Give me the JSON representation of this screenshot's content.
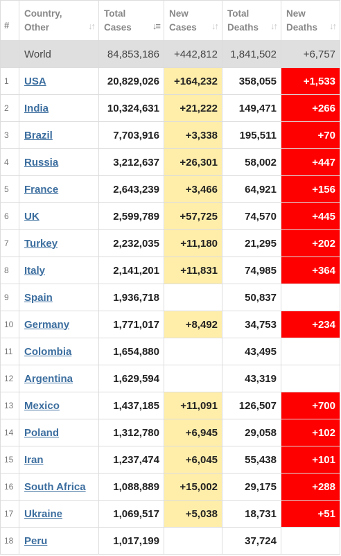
{
  "header": {
    "rank": "#",
    "country": [
      "Country,",
      "Other"
    ],
    "total_cases": [
      "Total",
      "Cases"
    ],
    "new_cases": [
      "New",
      "Cases"
    ],
    "total_deaths": [
      "Total",
      "Deaths"
    ],
    "new_deaths": [
      "New",
      "Deaths"
    ],
    "sort_icon": "sort-arrows-icon"
  },
  "world": {
    "country": "World",
    "total_cases": "84,853,186",
    "new_cases": "+442,812",
    "total_deaths": "1,841,502",
    "new_deaths": "+6,757"
  },
  "rows": [
    {
      "rank": "1",
      "country": "USA",
      "total_cases": "20,829,026",
      "new_cases": "+164,232",
      "total_deaths": "358,055",
      "new_deaths": "+1,533"
    },
    {
      "rank": "2",
      "country": "India",
      "total_cases": "10,324,631",
      "new_cases": "+21,222",
      "total_deaths": "149,471",
      "new_deaths": "+266"
    },
    {
      "rank": "3",
      "country": "Brazil",
      "total_cases": "7,703,916",
      "new_cases": "+3,338",
      "total_deaths": "195,511",
      "new_deaths": "+70"
    },
    {
      "rank": "4",
      "country": "Russia",
      "total_cases": "3,212,637",
      "new_cases": "+26,301",
      "total_deaths": "58,002",
      "new_deaths": "+447"
    },
    {
      "rank": "5",
      "country": "France",
      "total_cases": "2,643,239",
      "new_cases": "+3,466",
      "total_deaths": "64,921",
      "new_deaths": "+156"
    },
    {
      "rank": "6",
      "country": "UK",
      "total_cases": "2,599,789",
      "new_cases": "+57,725",
      "total_deaths": "74,570",
      "new_deaths": "+445"
    },
    {
      "rank": "7",
      "country": "Turkey",
      "total_cases": "2,232,035",
      "new_cases": "+11,180",
      "total_deaths": "21,295",
      "new_deaths": "+202"
    },
    {
      "rank": "8",
      "country": "Italy",
      "total_cases": "2,141,201",
      "new_cases": "+11,831",
      "total_deaths": "74,985",
      "new_deaths": "+364"
    },
    {
      "rank": "9",
      "country": "Spain",
      "total_cases": "1,936,718",
      "new_cases": "",
      "total_deaths": "50,837",
      "new_deaths": ""
    },
    {
      "rank": "10",
      "country": "Germany",
      "total_cases": "1,771,017",
      "new_cases": "+8,492",
      "total_deaths": "34,753",
      "new_deaths": "+234"
    },
    {
      "rank": "11",
      "country": "Colombia",
      "total_cases": "1,654,880",
      "new_cases": "",
      "total_deaths": "43,495",
      "new_deaths": ""
    },
    {
      "rank": "12",
      "country": "Argentina",
      "total_cases": "1,629,594",
      "new_cases": "",
      "total_deaths": "43,319",
      "new_deaths": ""
    },
    {
      "rank": "13",
      "country": "Mexico",
      "total_cases": "1,437,185",
      "new_cases": "+11,091",
      "total_deaths": "126,507",
      "new_deaths": "+700"
    },
    {
      "rank": "14",
      "country": "Poland",
      "total_cases": "1,312,780",
      "new_cases": "+6,945",
      "total_deaths": "29,058",
      "new_deaths": "+102"
    },
    {
      "rank": "15",
      "country": "Iran",
      "total_cases": "1,237,474",
      "new_cases": "+6,045",
      "total_deaths": "55,438",
      "new_deaths": "+101"
    },
    {
      "rank": "16",
      "country": "South Africa",
      "total_cases": "1,088,889",
      "new_cases": "+15,002",
      "total_deaths": "29,175",
      "new_deaths": "+288"
    },
    {
      "rank": "17",
      "country": "Ukraine",
      "total_cases": "1,069,517",
      "new_cases": "+5,038",
      "total_deaths": "18,731",
      "new_deaths": "+51"
    },
    {
      "rank": "18",
      "country": "Peru",
      "total_cases": "1,017,199",
      "new_cases": "",
      "total_deaths": "37,724",
      "new_deaths": ""
    }
  ],
  "colors": {
    "new_cases_highlight": "#ffeeaa",
    "new_deaths_highlight": "#ff0000",
    "world_row_bg": "#dfdfdf",
    "country_link": "#3c6e9f"
  }
}
